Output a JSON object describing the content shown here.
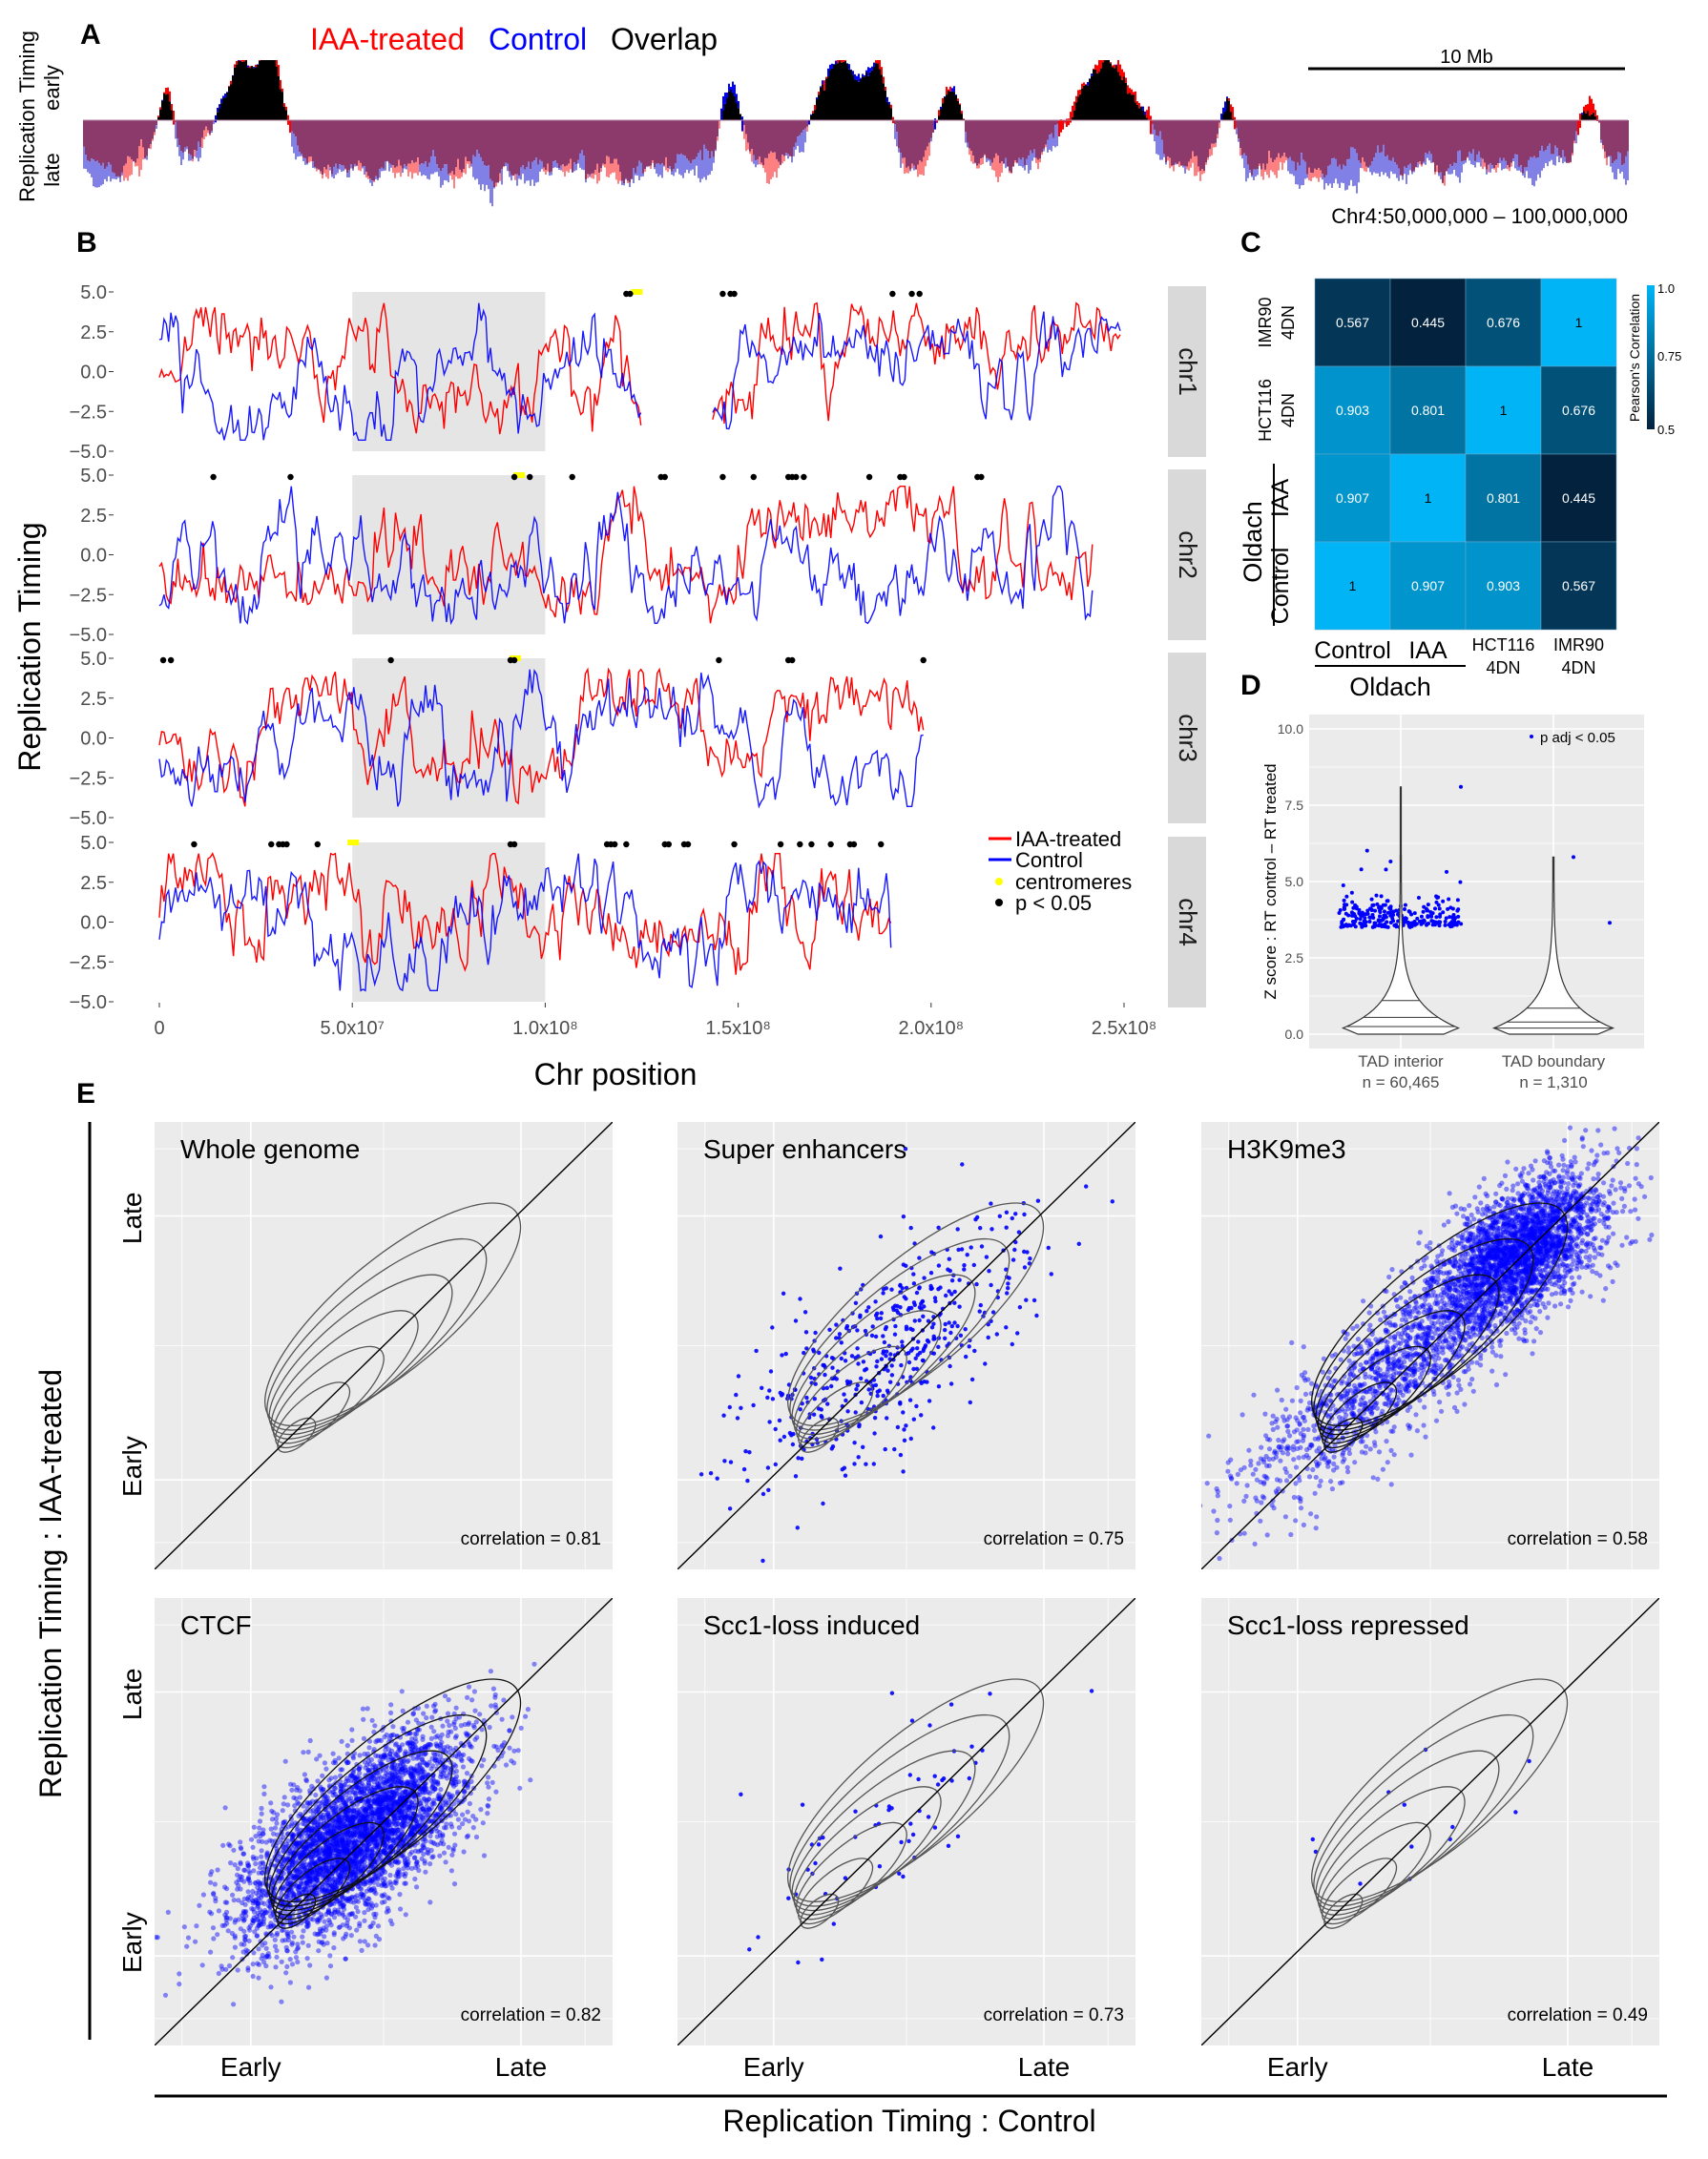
{
  "panels": {
    "a": "A",
    "b": "B",
    "c": "C",
    "d": "D",
    "e": "E"
  },
  "colors": {
    "treated": "#ff0000",
    "control": "#0000ff",
    "overlap": "#000000",
    "late_overlap": "#8b3a6b",
    "centromere": "#ffff00",
    "panel_bg": "#ebebeb",
    "heat_low": "#03223d",
    "heat_high": "#00b4f5"
  },
  "chart_data": [
    {
      "id": "A",
      "type": "area",
      "legend": [
        "IAA-treated",
        "Control",
        "Overlap"
      ],
      "ylabel": "Replication Timing",
      "ylabel_top": "early",
      "ylabel_bottom": "late",
      "scale_bar": "10 Mb",
      "region": "Chr4:50,000,000 – 100,000,000"
    },
    {
      "id": "B",
      "type": "line",
      "xlabel": "Chr position",
      "ylabel": "Replication Timing",
      "ylim": [
        -5,
        5
      ],
      "xlim": [
        0,
        250000000
      ],
      "yticks": [
        "5.0",
        "2.5",
        "0.0",
        "−2.5",
        "−5.0"
      ],
      "xticks": [
        "0",
        "5.0x10⁷",
        "1.0x10⁸",
        "1.5x10⁸",
        "2.0x10⁸",
        "2.5x10⁸"
      ],
      "highlight_region": [
        50000000,
        100000000
      ],
      "legend": [
        "IAA-treated",
        "Control",
        "centromeres",
        "p < 0.05"
      ],
      "facets": [
        {
          "name": "chr1",
          "length": 249000000,
          "gap": [
            125000000,
            143000000
          ],
          "centromere": 123500000,
          "pvals": [
            121000000,
            122000000,
            146000000,
            148000000,
            149000000,
            190000000,
            195000000,
            197000000
          ]
        },
        {
          "name": "chr2",
          "length": 242000000,
          "gap": null,
          "centromere": 93000000,
          "pvals": [
            14000000,
            34000000,
            92000000,
            96000000,
            107000000,
            130000000,
            131000000,
            146000000,
            154000000,
            163000000,
            164000000,
            165000000,
            167000000,
            184000000,
            192000000,
            193000000,
            212000000,
            213000000
          ]
        },
        {
          "name": "chr3",
          "length": 198000000,
          "gap": null,
          "centromere": 92000000,
          "pvals": [
            1000000,
            3000000,
            60000000,
            91000000,
            92000000,
            145000000,
            163000000,
            164000000,
            198000000
          ]
        },
        {
          "name": "chr4",
          "length": 190000000,
          "gap": null,
          "centromere": 50000000,
          "pvals": [
            9000000,
            29000000,
            31000000,
            32000000,
            33000000,
            41000000,
            91000000,
            92000000,
            116000000,
            117000000,
            118000000,
            121000000,
            131000000,
            132000000,
            136000000,
            137000000,
            149000000,
            161000000,
            166000000,
            169000000,
            174000000,
            179000000,
            180000000,
            187000000
          ]
        }
      ]
    },
    {
      "id": "C",
      "type": "heatmap",
      "rows": [
        "IMR90 4DN",
        "HCT116 4DN",
        "IAA",
        "Control"
      ],
      "row_labels": [
        [
          "IMR90",
          "4DN"
        ],
        [
          "HCT116",
          "4DN"
        ],
        [
          "IAA"
        ],
        [
          "Control"
        ]
      ],
      "cols": [
        "Control",
        "IAA",
        "HCT116 4DN",
        "IMR90 4DN"
      ],
      "col_labels": [
        [
          "Control"
        ],
        [
          "IAA"
        ],
        [
          "HCT116",
          "4DN"
        ],
        [
          "IMR90",
          "4DN"
        ]
      ],
      "group_label": "Oldach",
      "values": [
        [
          "0.567",
          "0.445",
          "0.676",
          "1"
        ],
        [
          "0.903",
          "0.801",
          "1",
          "0.676"
        ],
        [
          "0.907",
          "1",
          "0.801",
          "0.445"
        ],
        [
          "1",
          "0.907",
          "0.903",
          "0.567"
        ]
      ],
      "colorbar": {
        "title": "Pearson's Correlation",
        "ticks": [
          "1.0",
          "0.75",
          "0.5"
        ],
        "range": [
          0.5,
          1.0
        ]
      }
    },
    {
      "id": "D",
      "type": "violin",
      "ylabel": "Z score : RT control – RT treated",
      "ylim": [
        0,
        10
      ],
      "yticks": [
        "10.0",
        "7.5",
        "5.0",
        "2.5",
        "0.0"
      ],
      "categories": [
        {
          "label": "TAD interior",
          "n": "n = 60,465",
          "max": 8.1,
          "quantiles": [
            0.25,
            0.55,
            1.1
          ]
        },
        {
          "label": "TAD boundary",
          "n": "n = 1,310",
          "max": 5.8,
          "quantiles": [
            0.2,
            0.4,
            0.85
          ],
          "sig_points": [
            5.8,
            3.65
          ]
        }
      ],
      "legend": "p adj < 0.05"
    },
    {
      "id": "E",
      "type": "scatter",
      "xlabel": "Replication Timing : Control",
      "ylabel": "Replication Timing : IAA-treated",
      "axis_ticks": [
        "Early",
        "Late"
      ],
      "plots": [
        {
          "title": "Whole genome",
          "correlation": "correlation = 0.81",
          "points": 0
        },
        {
          "title": "Super enhancers",
          "correlation": "correlation = 0.75",
          "points": 500
        },
        {
          "title": "H3K9me3",
          "correlation": "correlation = 0.58",
          "points": 4000
        },
        {
          "title": "CTCF",
          "correlation": "correlation = 0.82",
          "points": 4000
        },
        {
          "title": "Scc1-loss induced",
          "correlation": "correlation = 0.73",
          "points": 60
        },
        {
          "title": "Scc1-loss repressed",
          "correlation": "correlation = 0.49",
          "points": 12
        }
      ]
    }
  ]
}
